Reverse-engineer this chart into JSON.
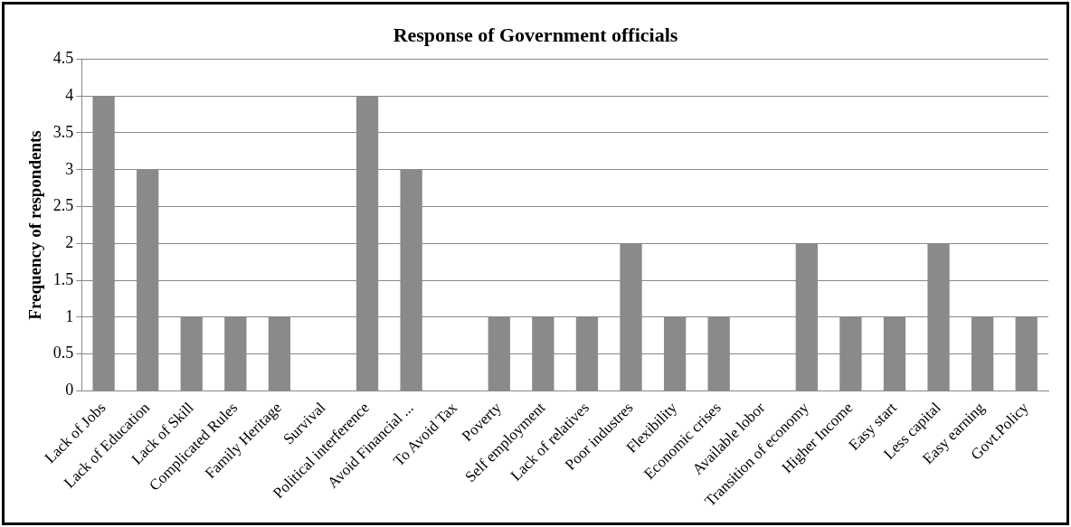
{
  "chart_data": {
    "type": "bar",
    "title": "Response of Government officials",
    "ylabel": "Frequency of respondents",
    "categories": [
      "Lack of Jobs",
      "Lack of Education",
      "Lack of Skill",
      "Complicated Rules",
      "Family Heritage",
      "Survival",
      "Political interference",
      "Avoid Financial ...",
      "To Avoid Tax",
      "Poverty",
      "Self employment",
      "Lack of relatives",
      "Poor industres",
      "Flexibility",
      "Economic crises",
      "Available lobor",
      "Transition of economy",
      "Higher Income",
      "Easy start",
      "Less capital",
      "Easy earning",
      "Govt.Policy"
    ],
    "values": [
      4,
      3,
      1,
      1,
      1,
      0,
      4,
      3,
      0,
      1,
      1,
      1,
      2,
      1,
      1,
      0,
      2,
      1,
      1,
      2,
      1,
      1
    ],
    "color": "#8a8a8a",
    "ylim": [
      0,
      4.5
    ],
    "yticks": [
      0,
      0.5,
      1,
      1.5,
      2,
      2.5,
      3,
      3.5,
      4,
      4.5
    ],
    "grid": "y"
  }
}
